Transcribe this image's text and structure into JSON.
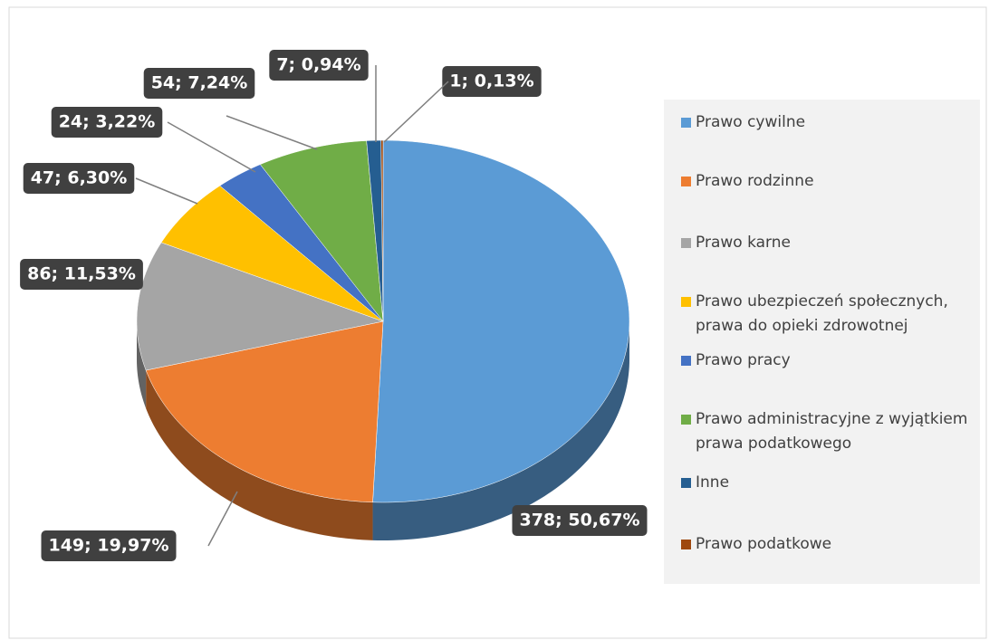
{
  "chart_data": {
    "type": "pie3d",
    "categories": [
      "Prawo cywilne",
      "Prawo rodzinne",
      "Prawo karne",
      "Prawo ubezpieczeń społecznych, prawa do opieki zdrowotnej",
      "Prawo pracy",
      "Prawo administracyjne z wyjątkiem prawa podatkowego",
      "Inne",
      "Prawo podatkowe"
    ],
    "values": [
      378,
      149,
      86,
      47,
      24,
      54,
      7,
      1
    ],
    "value_labels": [
      "378; 50,67%",
      "149; 19,97%",
      "86; 11,53%",
      "47; 6,30%",
      "24; 3,22%",
      "54; 7,24%",
      "7; 0,94%",
      "1; 0,13%"
    ],
    "colors": [
      "#5b9bd5",
      "#ed7d31",
      "#a5a5a5",
      "#ffc000",
      "#4472c4",
      "#70ad47",
      "#255e91",
      "#9e480e"
    ],
    "legend": "right"
  }
}
